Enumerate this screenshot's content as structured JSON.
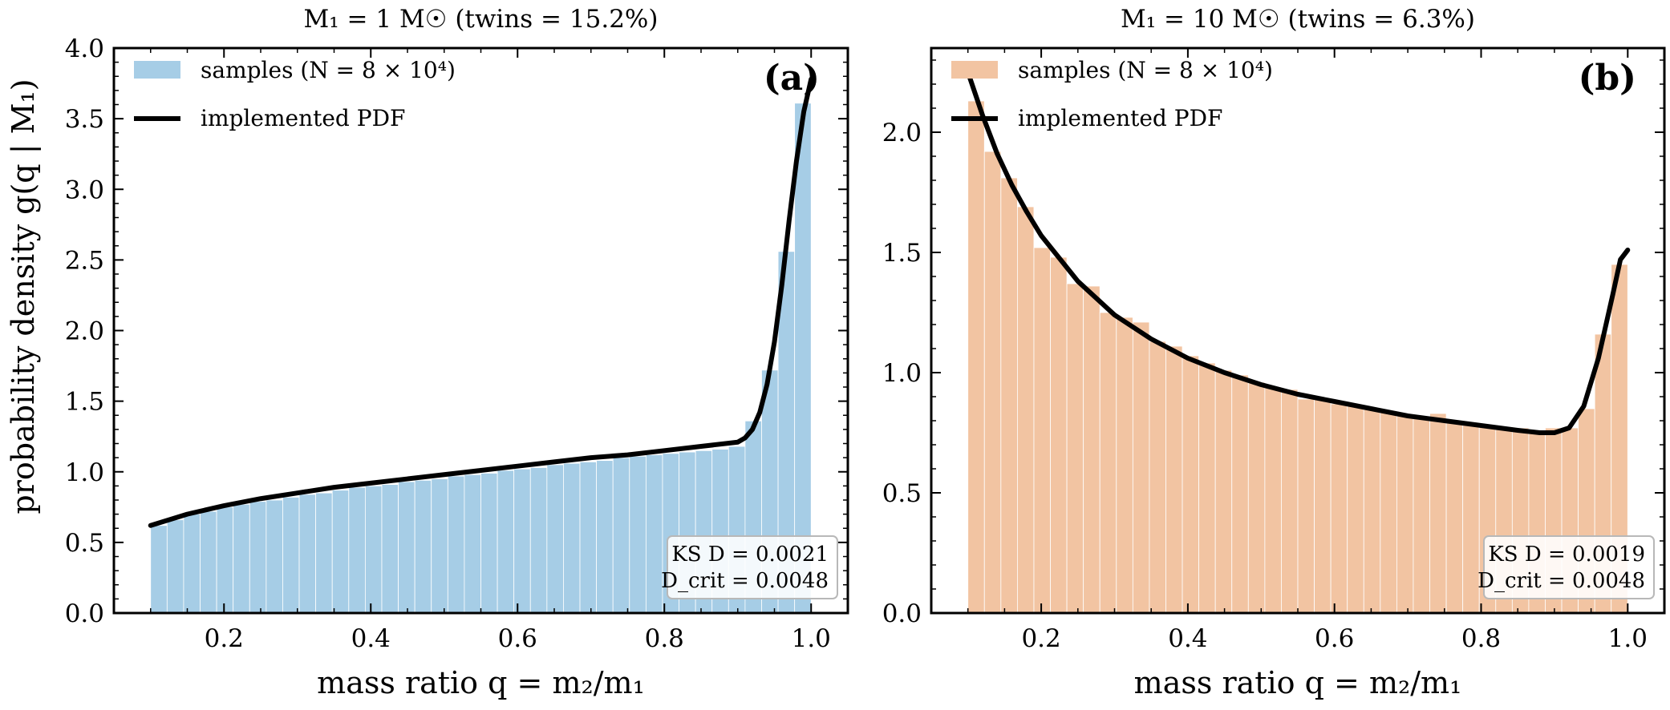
{
  "figure": {
    "ylabel": "probability density g(q | M₁)"
  },
  "chart_data": [
    {
      "type": "bar",
      "title": "M₁ = 1 M☉   (twins = 15.2%)",
      "panel_tag": "(a)",
      "xlabel": "mass ratio q = m₂/m₁",
      "ylabel": "probability density g(q | M₁)",
      "xlim": [
        0.05,
        1.05
      ],
      "ylim": [
        0,
        4.0
      ],
      "xticks": [
        "0.2",
        "0.4",
        "0.6",
        "0.8",
        "1.0"
      ],
      "xtick_values": [
        0.2,
        0.4,
        0.6,
        0.8,
        1.0
      ],
      "yticks": [
        "0.0",
        "0.5",
        "1.0",
        "1.5",
        "2.0",
        "2.5",
        "3.0",
        "3.5",
        "4.0"
      ],
      "ytick_values": [
        0,
        0.5,
        1.0,
        1.5,
        2.0,
        2.5,
        3.0,
        3.5,
        4.0
      ],
      "legend_position": "top-left",
      "legend": {
        "samples": "samples (N = 8 × 10⁴)",
        "pdf": "implemented PDF"
      },
      "bar_color": "#a6cde6",
      "bins": {
        "start": 0.1,
        "end": 1.0,
        "count": 40
      },
      "values": [
        0.62,
        0.66,
        0.7,
        0.72,
        0.75,
        0.77,
        0.79,
        0.8,
        0.82,
        0.84,
        0.85,
        0.87,
        0.89,
        0.9,
        0.91,
        0.93,
        0.94,
        0.95,
        0.97,
        0.98,
        0.99,
        1.01,
        1.02,
        1.03,
        1.05,
        1.06,
        1.07,
        1.08,
        1.1,
        1.11,
        1.12,
        1.13,
        1.14,
        1.15,
        1.16,
        1.18,
        1.36,
        1.72,
        2.56,
        3.61
      ],
      "pdf_curve": {
        "x": [
          0.1,
          0.15,
          0.2,
          0.25,
          0.3,
          0.35,
          0.4,
          0.45,
          0.5,
          0.55,
          0.6,
          0.65,
          0.7,
          0.75,
          0.8,
          0.85,
          0.9,
          0.91,
          0.92,
          0.93,
          0.94,
          0.95,
          0.96,
          0.97,
          0.98,
          0.99,
          1.0
        ],
        "y": [
          0.62,
          0.7,
          0.76,
          0.81,
          0.85,
          0.89,
          0.92,
          0.95,
          0.98,
          1.01,
          1.04,
          1.07,
          1.1,
          1.12,
          1.15,
          1.18,
          1.21,
          1.24,
          1.3,
          1.42,
          1.62,
          1.92,
          2.32,
          2.78,
          3.2,
          3.55,
          3.78
        ]
      },
      "ks": {
        "line1": "KS D = 0.0021",
        "line2": "D_crit = 0.0048"
      }
    },
    {
      "type": "bar",
      "title": "M₁ = 10 M☉   (twins = 6.3%)",
      "panel_tag": "(b)",
      "xlabel": "mass ratio q = m₂/m₁",
      "ylabel": "",
      "xlim": [
        0.05,
        1.05
      ],
      "ylim": [
        0,
        2.35
      ],
      "xticks": [
        "0.2",
        "0.4",
        "0.6",
        "0.8",
        "1.0"
      ],
      "xtick_values": [
        0.2,
        0.4,
        0.6,
        0.8,
        1.0
      ],
      "yticks": [
        "0.0",
        "0.5",
        "1.0",
        "1.5",
        "2.0"
      ],
      "ytick_values": [
        0,
        0.5,
        1.0,
        1.5,
        2.0
      ],
      "legend_position": "top-left",
      "legend": {
        "samples": "samples (N = 8 × 10⁴)",
        "pdf": "implemented PDF"
      },
      "bar_color": "#f2c4a2",
      "bins": {
        "start": 0.1,
        "end": 1.0,
        "count": 40
      },
      "values": [
        2.13,
        1.92,
        1.81,
        1.69,
        1.52,
        1.48,
        1.37,
        1.36,
        1.25,
        1.23,
        1.21,
        1.13,
        1.11,
        1.07,
        1.04,
        1.01,
        0.99,
        0.96,
        0.94,
        0.93,
        0.89,
        0.89,
        0.87,
        0.86,
        0.85,
        0.84,
        0.82,
        0.81,
        0.83,
        0.8,
        0.79,
        0.78,
        0.77,
        0.77,
        0.76,
        0.77,
        0.77,
        0.85,
        1.16,
        1.45
      ],
      "pdf_curve": {
        "x": [
          0.1,
          0.12,
          0.14,
          0.16,
          0.18,
          0.2,
          0.25,
          0.3,
          0.35,
          0.4,
          0.45,
          0.5,
          0.55,
          0.6,
          0.65,
          0.7,
          0.75,
          0.8,
          0.85,
          0.88,
          0.9,
          0.92,
          0.94,
          0.96,
          0.98,
          0.99,
          1.0
        ],
        "y": [
          2.25,
          2.07,
          1.91,
          1.78,
          1.67,
          1.57,
          1.38,
          1.24,
          1.14,
          1.06,
          1.0,
          0.95,
          0.91,
          0.88,
          0.85,
          0.82,
          0.8,
          0.78,
          0.76,
          0.75,
          0.75,
          0.77,
          0.86,
          1.06,
          1.33,
          1.47,
          1.51
        ]
      },
      "ks": {
        "line1": "KS D = 0.0019",
        "line2": "D_crit = 0.0048"
      }
    }
  ]
}
